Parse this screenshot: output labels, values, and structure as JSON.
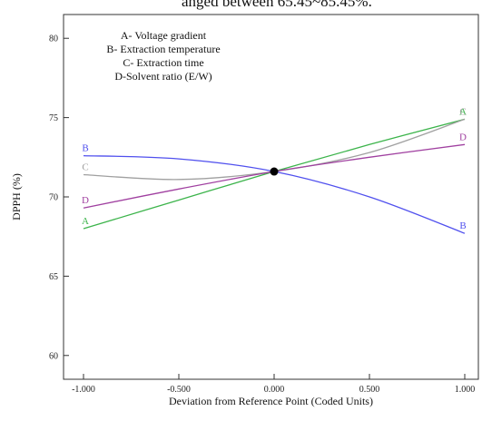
{
  "header_fragment": "anged between 65.45~85.45%.",
  "chart_data": {
    "type": "line",
    "xlabel": "Deviation from Reference Point (Coded Units)",
    "ylabel": "DPPH (%)",
    "xlim": [
      -1.0,
      1.0
    ],
    "ylim": [
      58.5,
      81.5
    ],
    "x_ticks": [
      -1.0,
      -0.5,
      0.0,
      0.5,
      1.0
    ],
    "x_tick_labels": [
      "-1.000",
      "-0.500",
      "0.000",
      "0.500",
      "1.000"
    ],
    "y_ticks": [
      60,
      65,
      70,
      75,
      80
    ],
    "y_tick_labels": [
      "60",
      "65",
      "70",
      "75",
      "80"
    ],
    "legend": [
      "A- Voltage gradient",
      "B- Extraction temperature",
      "C- Extraction time",
      "D-Solvent ratio (E/W)"
    ],
    "reference_point": {
      "x": 0.0,
      "y": 71.6
    },
    "series": [
      {
        "name": "A",
        "color": "#3cb44b",
        "x": [
          -1.0,
          -0.5,
          0.0,
          0.5,
          1.0
        ],
        "y": [
          68.0,
          69.8,
          71.6,
          73.3,
          74.9
        ]
      },
      {
        "name": "B",
        "color": "#5050ee",
        "x": [
          -1.0,
          -0.5,
          0.0,
          0.5,
          1.0
        ],
        "y": [
          72.6,
          72.4,
          71.6,
          70.0,
          67.7
        ]
      },
      {
        "name": "C",
        "color": "#a0a0a0",
        "x": [
          -1.0,
          -0.5,
          0.0,
          0.5,
          1.0
        ],
        "y": [
          71.4,
          71.1,
          71.6,
          72.8,
          74.9
        ]
      },
      {
        "name": "D",
        "color": "#a040a0",
        "x": [
          -1.0,
          -0.5,
          0.0,
          0.5,
          1.0
        ],
        "y": [
          69.3,
          70.5,
          71.6,
          72.5,
          73.3
        ]
      }
    ]
  }
}
